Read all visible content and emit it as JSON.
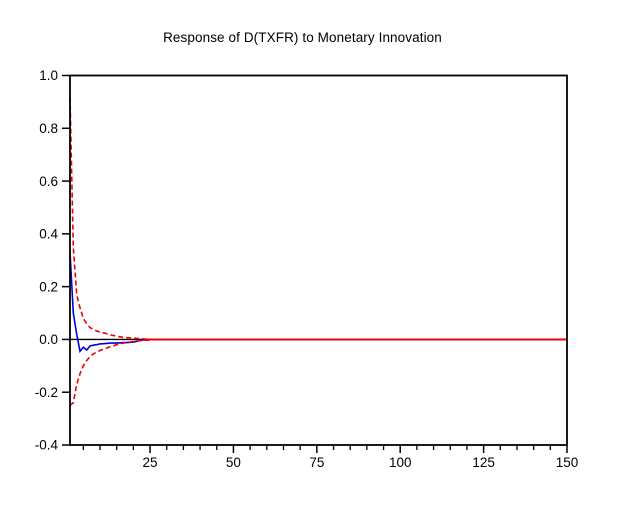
{
  "chart_data": {
    "type": "line",
    "title": "Response of D(TXFR) to Monetary Innovation",
    "xlabel": "",
    "ylabel": "",
    "x_range": [
      1,
      150
    ],
    "y_range": [
      -0.4,
      1.0
    ],
    "x_ticks": [
      {
        "value": 25,
        "label": "25"
      },
      {
        "value": 50,
        "label": "50"
      },
      {
        "value": 75,
        "label": "75"
      },
      {
        "value": 100,
        "label": "100"
      },
      {
        "value": 125,
        "label": "125"
      },
      {
        "value": 150,
        "label": "150"
      }
    ],
    "x_minor_tick_step": 5,
    "y_ticks": [
      {
        "value": 1.0,
        "label": "1.0"
      },
      {
        "value": 0.8,
        "label": "0.8"
      },
      {
        "value": 0.6,
        "label": "0.6"
      },
      {
        "value": 0.4,
        "label": "0.4"
      },
      {
        "value": 0.2,
        "label": "0.2"
      },
      {
        "value": 0.0,
        "label": "0.0"
      },
      {
        "value": -0.2,
        "label": "-0.2"
      },
      {
        "value": -0.4,
        "label": "-0.4"
      }
    ],
    "grid": false,
    "legend": "none",
    "periods_total": 150,
    "zero_line_value": 0,
    "bands_converge_at_period": 24,
    "colors": {
      "response": "#0000dd",
      "bands": "#f00000",
      "zero_line": "#000000",
      "axes": "#000000"
    },
    "series": [
      {
        "name": "response",
        "style": "solid",
        "color_key": "response",
        "tail_value": 0,
        "values": [
          0.33,
          0.1,
          0.02,
          -0.045,
          -0.03,
          -0.04,
          -0.025,
          -0.022,
          -0.02,
          -0.017,
          -0.016,
          -0.015,
          -0.014,
          -0.014,
          -0.013,
          -0.013,
          -0.012,
          -0.012,
          -0.011,
          -0.01,
          -0.007,
          -0.004,
          -0.002,
          -0.001,
          0,
          0,
          0,
          0,
          0,
          0
        ]
      },
      {
        "name": "upper_2se_band",
        "style": "dashed",
        "color_key": "bands",
        "tail_value": 0,
        "values": [
          0.92,
          0.35,
          0.17,
          0.12,
          0.08,
          0.06,
          0.045,
          0.038,
          0.032,
          0.028,
          0.025,
          0.022,
          0.018,
          0.015,
          0.012,
          0.01,
          0.008,
          0.007,
          0.006,
          0.005,
          0.004,
          0.003,
          0.002,
          0.001,
          0.001,
          0,
          0,
          0,
          0,
          0
        ]
      },
      {
        "name": "lower_2se_band",
        "style": "dashed",
        "color_key": "bands",
        "tail_value": 0,
        "values": [
          -0.25,
          -0.24,
          -0.17,
          -0.13,
          -0.1,
          -0.08,
          -0.065,
          -0.055,
          -0.048,
          -0.042,
          -0.037,
          -0.033,
          -0.028,
          -0.024,
          -0.02,
          -0.017,
          -0.014,
          -0.012,
          -0.01,
          -0.008,
          -0.006,
          -0.005,
          -0.004,
          -0.003,
          -0.002,
          -0.001,
          0,
          0,
          0,
          0
        ]
      }
    ]
  }
}
